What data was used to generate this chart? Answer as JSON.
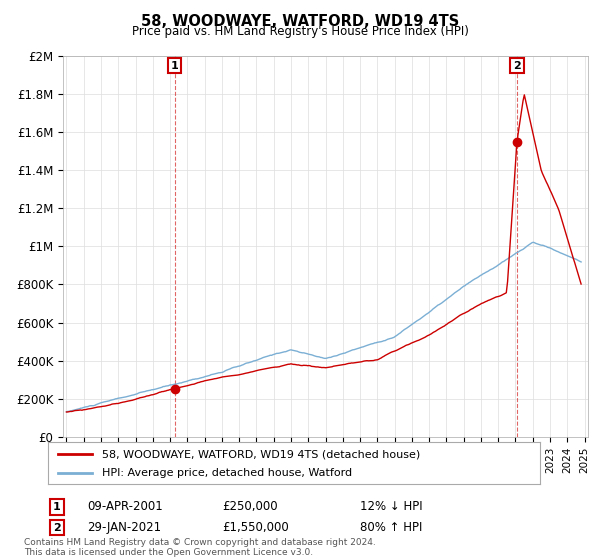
{
  "title": "58, WOODWAYE, WATFORD, WD19 4TS",
  "subtitle": "Price paid vs. HM Land Registry's House Price Index (HPI)",
  "ylim": [
    0,
    2000000
  ],
  "yticks": [
    0,
    200000,
    400000,
    600000,
    800000,
    1000000,
    1200000,
    1400000,
    1600000,
    1800000,
    2000000
  ],
  "ytick_labels": [
    "£0",
    "£200K",
    "£400K",
    "£600K",
    "£800K",
    "£1M",
    "£1.2M",
    "£1.4M",
    "£1.6M",
    "£1.8M",
    "£2M"
  ],
  "xlim_start": 1994.8,
  "xlim_end": 2025.2,
  "hpi_color": "#7bafd4",
  "price_color": "#cc0000",
  "legend_line1": "58, WOODWAYE, WATFORD, WD19 4TS (detached house)",
  "legend_line2": "HPI: Average price, detached house, Watford",
  "annotation1_num": "1",
  "annotation1_date": "09-APR-2001",
  "annotation1_price": "£250,000",
  "annotation1_hpi": "12% ↓ HPI",
  "annotation2_num": "2",
  "annotation2_date": "29-JAN-2021",
  "annotation2_price": "£1,550,000",
  "annotation2_hpi": "80% ↑ HPI",
  "footer": "Contains HM Land Registry data © Crown copyright and database right 2024.\nThis data is licensed under the Open Government Licence v3.0.",
  "background_color": "#ffffff",
  "grid_color": "#dddddd",
  "sale1_x": 2001.27,
  "sale1_y": 250000,
  "sale2_x": 2021.08,
  "sale2_y": 1550000
}
